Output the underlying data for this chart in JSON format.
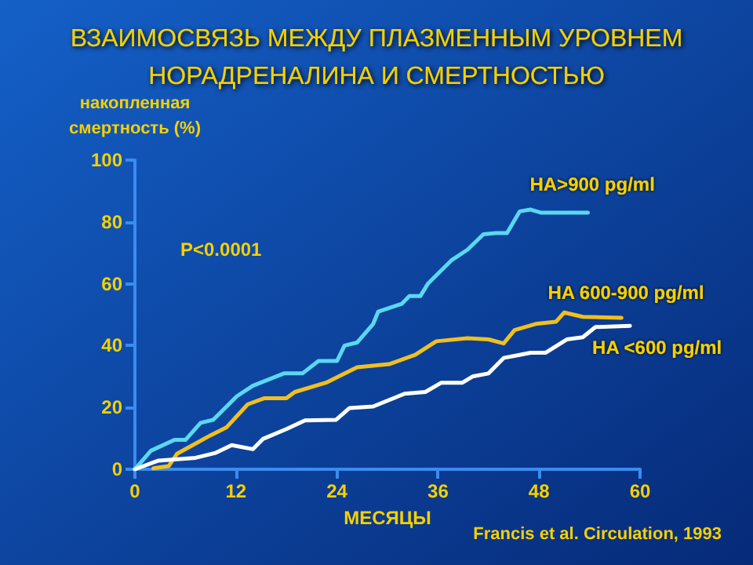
{
  "chart_data": {
    "type": "line",
    "title": "ВЗАИМОСВЯЗЬ МЕЖДУ ПЛАЗМЕННЫМ УРОВНЕМ\nНОРАДРЕНАЛИНА И СМЕРТНОСТЬЮ",
    "xlabel": "МЕСЯЦЫ",
    "ylabel": "накопленная\nсмертность (%)",
    "annotations": [
      "P<0.0001",
      "Francis et al. Circulation, 1993"
    ],
    "xlim": [
      0,
      60
    ],
    "xticks": [
      0,
      12,
      24,
      36,
      48,
      60
    ],
    "ylim": [
      0,
      100
    ],
    "yticks": [
      0,
      20,
      40,
      60,
      80,
      100
    ],
    "grid": false,
    "legend": false,
    "marker": "none",
    "line_style": "solid",
    "series": [
      {
        "name": "HA>900 pg/ml",
        "color": "#5ad8f0",
        "x": [
          0,
          1.9,
          4.7,
          6,
          7.8,
          9.3,
          12.1,
          14,
          17.7,
          19.9,
          21.8,
          24,
          24.9,
          26.4,
          28.3,
          28.9,
          31.7,
          32.6,
          33.9,
          34.8,
          37.6,
          39.5,
          41.4,
          42.9,
          44.2,
          45.7,
          47,
          48.2,
          53.8
        ],
        "values": [
          0,
          6,
          9.5,
          9.5,
          15,
          16,
          23.6,
          27,
          31,
          31,
          35,
          35,
          40,
          41,
          47,
          51,
          53.5,
          56,
          56,
          60,
          67.6,
          71,
          76,
          76.4,
          76.4,
          83.4,
          84,
          83,
          83
        ]
      },
      {
        "name": "HA 600-900 pg/ml",
        "color": "#f0c020",
        "x": [
          2.2,
          4,
          5,
          9,
          10.9,
          13.4,
          15.4,
          18,
          19,
          22.7,
          26.4,
          30.2,
          33.3,
          35.8,
          39.5,
          42,
          43.8,
          45.1,
          47.6,
          50,
          51,
          53.2,
          57.8
        ],
        "values": [
          0.3,
          1,
          5,
          11,
          13.6,
          21,
          23,
          23,
          25,
          28,
          33,
          34,
          37,
          41.4,
          42.4,
          42,
          40.7,
          45,
          47,
          47.7,
          50.7,
          49.3,
          49
        ]
      },
      {
        "name": "HA <600 pg/ml",
        "color": "#ffffff",
        "x": [
          0,
          2.8,
          7.2,
          9.6,
          11.5,
          14,
          15.2,
          18,
          20.2,
          23.9,
          25.5,
          28.3,
          32,
          34.5,
          36.4,
          38.9,
          40.1,
          42,
          43.8,
          45.7,
          47,
          48.8,
          51.3,
          53.2,
          54.7,
          58.8
        ],
        "values": [
          0,
          2.8,
          3.7,
          5.3,
          7.8,
          6.5,
          9.8,
          13,
          15.8,
          16,
          19.8,
          20.3,
          24.4,
          25,
          28,
          28,
          30,
          31,
          36,
          37,
          37.7,
          37.7,
          42,
          42.7,
          46,
          46.4
        ]
      }
    ]
  }
}
